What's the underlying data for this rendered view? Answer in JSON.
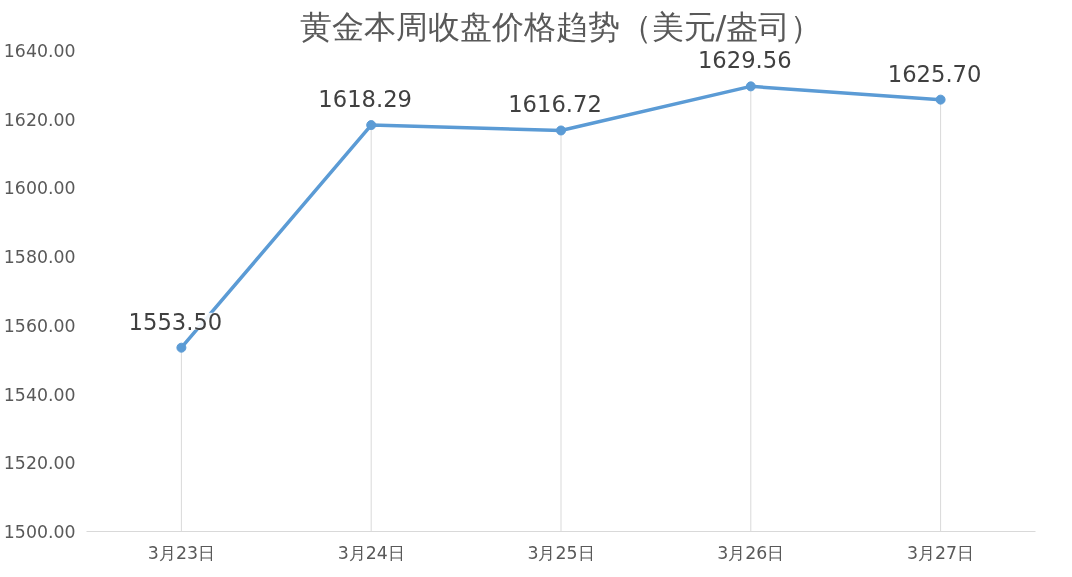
{
  "chart_data": {
    "type": "line",
    "title": "黄金本周收盘价格趋势（美元/盎司）",
    "categories": [
      "3月23日",
      "3月24日",
      "3月25日",
      "3月26日",
      "3月27日"
    ],
    "series": [
      {
        "color": "#5b9bd5",
        "values": [
          1553.5,
          1618.29,
          1616.72,
          1629.56,
          1625.7
        ],
        "value_labels": [
          "1553.50",
          "1618.29",
          "1616.72",
          "1629.56",
          "1625.70"
        ]
      }
    ],
    "ylim": [
      1500,
      1640
    ],
    "yticks": [
      {
        "value": 1500,
        "label": "1500.00"
      },
      {
        "value": 1520,
        "label": "1520.00"
      },
      {
        "value": 1540,
        "label": "1540.00"
      },
      {
        "value": 1560,
        "label": "1560.00"
      },
      {
        "value": 1580,
        "label": "1580.00"
      },
      {
        "value": 1600,
        "label": "1600.00"
      },
      {
        "value": 1620,
        "label": "1620.00"
      },
      {
        "value": 1640,
        "label": "1640.00"
      }
    ],
    "marker": "circle",
    "line_style": "solid",
    "grid": "x"
  }
}
